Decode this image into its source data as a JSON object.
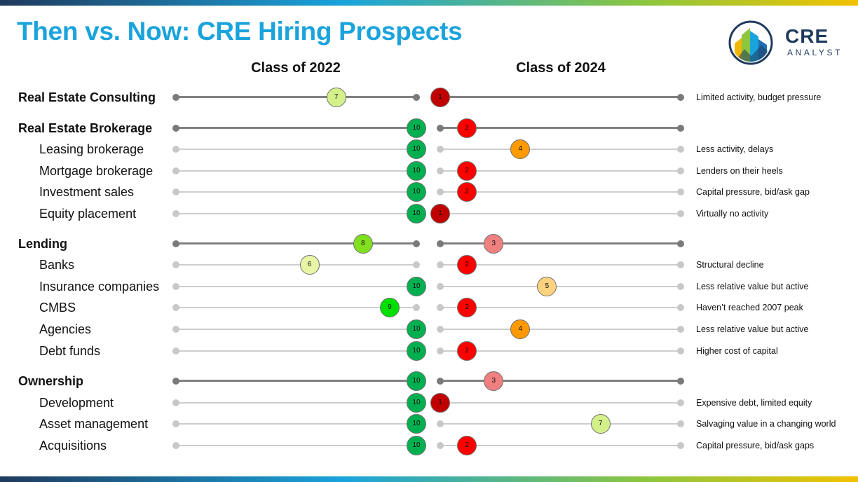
{
  "title": "Then vs. Now: CRE Hiring Prospects",
  "logo": {
    "name": "CRE",
    "sub": "ANALYST"
  },
  "columns": {
    "left": "Class of 2022",
    "right": "Class of 2024"
  },
  "scale": {
    "min": 1,
    "max": 10
  },
  "colors": {
    "title": "#1aa3dc",
    "score_1": "#c00000",
    "score_2": "#ff0000",
    "score_3": "#f08080",
    "score_4": "#ff9900",
    "score_5": "#ffd27f",
    "score_6": "#e8f5a6",
    "score_7": "#d4f08a",
    "score_8": "#80e020",
    "score_9": "#00e000",
    "score_10": "#00b050"
  },
  "rows": [
    {
      "label": "Real Estate Consulting",
      "heading": true,
      "score_2022": 7,
      "score_2024": 1,
      "note": "Limited activity, budget pressure"
    },
    {
      "label": "Real Estate Brokerage",
      "heading": true,
      "score_2022": 10,
      "score_2024": 2,
      "note": ""
    },
    {
      "label": "Leasing brokerage",
      "heading": false,
      "score_2022": 10,
      "score_2024": 4,
      "note": "Less activity, delays"
    },
    {
      "label": "Mortgage brokerage",
      "heading": false,
      "score_2022": 10,
      "score_2024": 2,
      "note": "Lenders on their heels"
    },
    {
      "label": "Investment sales",
      "heading": false,
      "score_2022": 10,
      "score_2024": 2,
      "note": "Capital pressure, bid/ask gap"
    },
    {
      "label": "Equity placement",
      "heading": false,
      "score_2022": 10,
      "score_2024": 1,
      "note": "Virtually no activity"
    },
    {
      "label": "Lending",
      "heading": true,
      "score_2022": 8,
      "score_2024": 3,
      "note": ""
    },
    {
      "label": "Banks",
      "heading": false,
      "score_2022": 6,
      "score_2024": 2,
      "note": "Structural decline"
    },
    {
      "label": "Insurance companies",
      "heading": false,
      "score_2022": 10,
      "score_2024": 5,
      "note": "Less relative value but active"
    },
    {
      "label": "CMBS",
      "heading": false,
      "score_2022": 9,
      "score_2024": 2,
      "note": "Haven’t reached 2007 peak"
    },
    {
      "label": "Agencies",
      "heading": false,
      "score_2022": 10,
      "score_2024": 4,
      "note": "Less relative value but active"
    },
    {
      "label": "Debt funds",
      "heading": false,
      "score_2022": 10,
      "score_2024": 2,
      "note": "Higher cost of capital"
    },
    {
      "label": "Ownership",
      "heading": true,
      "score_2022": 10,
      "score_2024": 3,
      "note": ""
    },
    {
      "label": "Development",
      "heading": false,
      "score_2022": 10,
      "score_2024": 1,
      "note": "Expensive debt, limited equity"
    },
    {
      "label": "Asset management",
      "heading": false,
      "score_2022": 10,
      "score_2024": 7,
      "note": "Salvaging value in a changing world"
    },
    {
      "label": "Acquisitions",
      "heading": false,
      "score_2022": 10,
      "score_2024": 2,
      "note": "Capital pressure, bid/ask gaps"
    }
  ]
}
